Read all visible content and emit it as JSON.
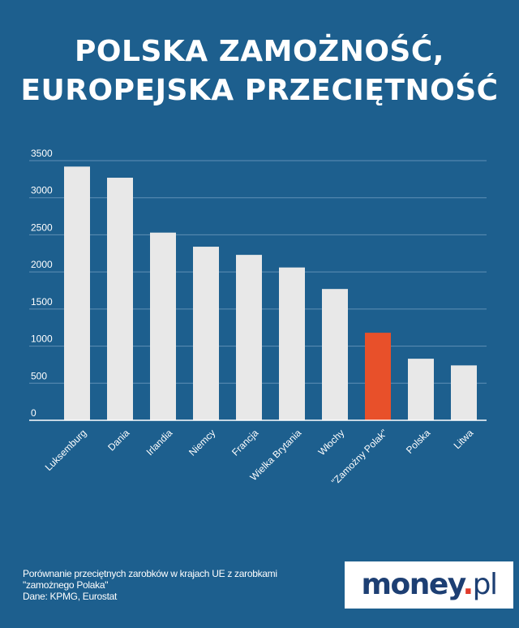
{
  "header": {
    "title_line1": "POLSKA ZAMOŻNOŚĆ,",
    "title_line2": "EUROPEJSKA PRZECIĘTNOŚĆ"
  },
  "chart_data": {
    "type": "bar",
    "title": "POLSKA ZAMOŻNOŚĆ, EUROPEJSKA PRZECIĘTNOŚĆ",
    "xlabel": "",
    "ylabel": "",
    "ylim": [
      0,
      3500
    ],
    "yticks": [
      0,
      500,
      1000,
      1500,
      2000,
      2500,
      3000,
      3500
    ],
    "grid": true,
    "categories": [
      "Luksemburg",
      "Dania",
      "Irlandia",
      "Niemcy",
      "Francja",
      "Wielka Brytania",
      "Włochy",
      "\"Zamożny Polak\"",
      "Polska",
      "Litwa"
    ],
    "values": [
      3420,
      3270,
      2530,
      2340,
      2230,
      2060,
      1770,
      1180,
      830,
      740
    ],
    "highlight_index": 7,
    "colors": {
      "bar": "#e8e8e8",
      "highlight": "#e8502a",
      "grid": "#5f8fb5",
      "axis": "#ffffff"
    }
  },
  "footer": {
    "note_line1": "Porównanie przeciętnych zarobków w krajach UE z zarobkami",
    "note_line2": "\"zamożnego Polaka\"",
    "source": "Dane: KPMG, Eurostat",
    "logo_main": "money",
    "logo_dot": ".",
    "logo_tld": "pl"
  }
}
